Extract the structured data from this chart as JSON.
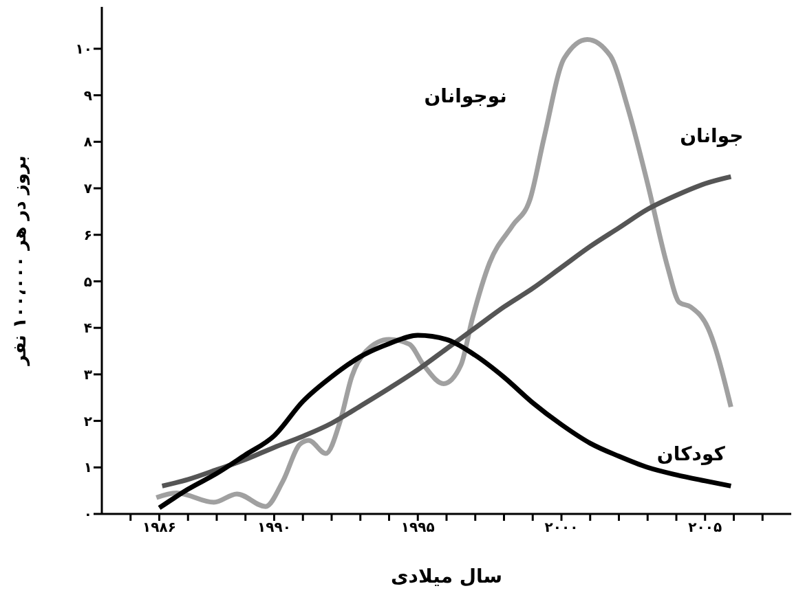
{
  "chart_data": {
    "type": "line",
    "xlabel": "سال میلادی",
    "ylabel": "بروز در هر ۱۰۰،۰۰۰ نفر",
    "xlim": [
      1984,
      2008
    ],
    "xticks": [
      {
        "value": 1985,
        "label": null
      },
      {
        "value": 1986,
        "label": "۱۹۸۶"
      },
      {
        "value": 1987,
        "label": null
      },
      {
        "value": 1988,
        "label": null
      },
      {
        "value": 1989,
        "label": null
      },
      {
        "value": 1990,
        "label": "۱۹۹۰"
      },
      {
        "value": 1991,
        "label": null
      },
      {
        "value": 1992,
        "label": null
      },
      {
        "value": 1993,
        "label": null
      },
      {
        "value": 1994,
        "label": null
      },
      {
        "value": 1995,
        "label": "۱۹۹۵"
      },
      {
        "value": 1996,
        "label": null
      },
      {
        "value": 1997,
        "label": null
      },
      {
        "value": 1998,
        "label": null
      },
      {
        "value": 1999,
        "label": null
      },
      {
        "value": 2000,
        "label": "۲۰۰۰"
      },
      {
        "value": 2001,
        "label": null
      },
      {
        "value": 2002,
        "label": null
      },
      {
        "value": 2003,
        "label": null
      },
      {
        "value": 2004,
        "label": null
      },
      {
        "value": 2005,
        "label": "۲۰۰۵"
      },
      {
        "value": 2006,
        "label": null
      },
      {
        "value": 2007,
        "label": null
      }
    ],
    "ylim": [
      0,
      10.9
    ],
    "yticks": [
      {
        "value": 0,
        "label": "۰"
      },
      {
        "value": 1,
        "label": "۱"
      },
      {
        "value": 2,
        "label": "۲"
      },
      {
        "value": 3,
        "label": "۳"
      },
      {
        "value": 4,
        "label": "۴"
      },
      {
        "value": 5,
        "label": "۵"
      },
      {
        "value": 6,
        "label": "۶"
      },
      {
        "value": 7,
        "label": "۷"
      },
      {
        "value": 8,
        "label": "۸"
      },
      {
        "value": 9,
        "label": "۹"
      },
      {
        "value": 10,
        "label": "۱۰"
      }
    ],
    "legend": false,
    "grid": false,
    "series": [
      {
        "name": "نوجوانان",
        "color": "#a0a0a0",
        "x": [
          1985.9,
          1986.6,
          1987.9,
          1988.7,
          1989.7,
          1990.3,
          1990.9,
          1991.2,
          1991.8,
          1992.3,
          1992.7,
          1993.2,
          1994.0,
          1994.7,
          1995.2,
          1995.9,
          1996.5,
          1996.9,
          1997.5,
          1998.3,
          1998.9,
          1999.4,
          2000.1,
          2000.9,
          2001.7,
          2002.3,
          2003.0,
          2003.7,
          2004.1,
          2004.5,
          2005.1,
          2005.9
        ],
        "values": [
          0.35,
          0.45,
          0.25,
          0.43,
          0.16,
          0.7,
          1.5,
          1.58,
          1.3,
          2.0,
          2.95,
          3.5,
          3.75,
          3.65,
          3.2,
          2.8,
          3.2,
          4.2,
          5.4,
          6.2,
          6.75,
          8.1,
          9.8,
          10.2,
          9.85,
          8.75,
          7.1,
          5.3,
          4.55,
          4.45,
          4.0,
          2.3
        ]
      },
      {
        "name": "جوانان",
        "color": "#555555",
        "x": [
          1986.1,
          1987,
          1988,
          1989,
          1990,
          1991,
          1992,
          1993,
          1994,
          1995,
          1996,
          1997,
          1998,
          1999,
          2000,
          2001,
          2002,
          2003,
          2004,
          2005,
          2005.9
        ],
        "values": [
          0.6,
          0.74,
          0.95,
          1.17,
          1.43,
          1.67,
          1.95,
          2.32,
          2.7,
          3.1,
          3.55,
          4.0,
          4.45,
          4.85,
          5.3,
          5.75,
          6.15,
          6.55,
          6.85,
          7.1,
          7.25
        ]
      },
      {
        "name": "کودکان",
        "color": "#000000",
        "x": [
          1986,
          1987,
          1988,
          1989,
          1990,
          1991,
          1992,
          1993,
          1994,
          1995,
          1996,
          1997,
          1998,
          1999,
          2000,
          2001,
          2002,
          2003,
          2004,
          2005,
          2005.9
        ],
        "values": [
          0.13,
          0.53,
          0.87,
          1.27,
          1.68,
          2.42,
          2.95,
          3.38,
          3.66,
          3.84,
          3.75,
          3.41,
          2.94,
          2.39,
          1.92,
          1.52,
          1.24,
          1.0,
          0.84,
          0.71,
          0.6
        ]
      }
    ]
  }
}
